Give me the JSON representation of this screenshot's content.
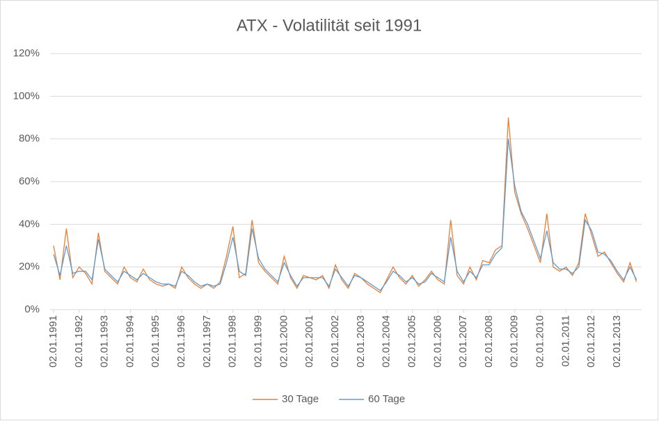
{
  "chart_data": {
    "type": "line",
    "title": "ATX - Volatilität seit 1991",
    "x": [
      1991,
      1991.25,
      1991.5,
      1991.75,
      1992,
      1992.25,
      1992.5,
      1992.75,
      1993,
      1993.25,
      1993.5,
      1993.75,
      1994,
      1994.25,
      1994.5,
      1994.75,
      1995,
      1995.25,
      1995.5,
      1995.75,
      1996,
      1996.25,
      1996.5,
      1996.75,
      1997,
      1997.25,
      1997.5,
      1997.75,
      1998,
      1998.25,
      1998.5,
      1998.75,
      1999,
      1999.25,
      1999.5,
      1999.75,
      2000,
      2000.25,
      2000.5,
      2000.75,
      2001,
      2001.25,
      2001.5,
      2001.75,
      2002,
      2002.25,
      2002.5,
      2002.75,
      2003,
      2003.25,
      2003.5,
      2003.75,
      2004,
      2004.25,
      2004.5,
      2004.75,
      2005,
      2005.25,
      2005.5,
      2005.75,
      2006,
      2006.25,
      2006.5,
      2006.75,
      2007,
      2007.25,
      2007.5,
      2007.75,
      2008,
      2008.25,
      2008.5,
      2008.75,
      2009,
      2009.25,
      2009.5,
      2009.75,
      2010,
      2010.25,
      2010.5,
      2010.75,
      2011,
      2011.25,
      2011.5,
      2011.75,
      2012,
      2012.25,
      2012.5,
      2012.75,
      2013,
      2013.25,
      2013.5,
      2013.75
    ],
    "series": [
      {
        "name": "30 Tage",
        "color": "#ed7d31",
        "values": [
          30,
          14,
          38,
          15,
          20,
          17,
          12,
          36,
          18,
          15,
          12,
          20,
          15,
          13,
          19,
          14,
          12,
          11,
          12,
          10,
          20,
          15,
          12,
          10,
          12,
          10,
          13,
          25,
          39,
          15,
          17,
          42,
          22,
          18,
          15,
          12,
          25,
          15,
          10,
          16,
          15,
          14,
          16,
          10,
          21,
          14,
          10,
          17,
          15,
          12,
          10,
          8,
          14,
          20,
          15,
          12,
          16,
          11,
          14,
          18,
          14,
          12,
          42,
          16,
          12,
          20,
          14,
          23,
          22,
          28,
          30,
          90,
          55,
          45,
          38,
          30,
          22,
          45,
          20,
          18,
          20,
          16,
          22,
          45,
          35,
          25,
          27,
          22,
          17,
          13,
          22,
          13
        ]
      },
      {
        "name": "60 Tage",
        "color": "#5b9bd5",
        "values": [
          26,
          16,
          30,
          17,
          18,
          18,
          14,
          33,
          19,
          16,
          13,
          18,
          16,
          14,
          17,
          15,
          13,
          12,
          12,
          11,
          18,
          16,
          13,
          11,
          12,
          11,
          12,
          22,
          34,
          18,
          16,
          38,
          24,
          19,
          16,
          13,
          22,
          16,
          11,
          15,
          15,
          15,
          15,
          11,
          19,
          15,
          11,
          16,
          15,
          13,
          11,
          9,
          13,
          18,
          16,
          13,
          15,
          12,
          13,
          17,
          15,
          13,
          34,
          18,
          13,
          18,
          15,
          21,
          21,
          26,
          29,
          80,
          58,
          46,
          40,
          32,
          24,
          37,
          22,
          19,
          19,
          17,
          20,
          42,
          37,
          27,
          26,
          23,
          18,
          14,
          20,
          14
        ]
      }
    ],
    "xlim": [
      1991,
      2013.95
    ],
    "xticks": [
      {
        "value": 1991,
        "label": "02.01.1991"
      },
      {
        "value": 1992,
        "label": "02.01.1992"
      },
      {
        "value": 1993,
        "label": "02.01.1993"
      },
      {
        "value": 1994,
        "label": "02.01.1994"
      },
      {
        "value": 1995,
        "label": "02.01.1995"
      },
      {
        "value": 1996,
        "label": "02.01.1996"
      },
      {
        "value": 1997,
        "label": "02.01.1997"
      },
      {
        "value": 1998,
        "label": "02.01.1998"
      },
      {
        "value": 1999,
        "label": "02.01.1999"
      },
      {
        "value": 2000,
        "label": "02.01.2000"
      },
      {
        "value": 2001,
        "label": "02.01.2001"
      },
      {
        "value": 2002,
        "label": "02.01.2002"
      },
      {
        "value": 2003,
        "label": "02.01.2003"
      },
      {
        "value": 2004,
        "label": "02.01.2004"
      },
      {
        "value": 2005,
        "label": "02.01.2005"
      },
      {
        "value": 2006,
        "label": "02.01.2006"
      },
      {
        "value": 2007,
        "label": "02.01.2007"
      },
      {
        "value": 2008,
        "label": "02.01.2008"
      },
      {
        "value": 2009,
        "label": "02.01.2009"
      },
      {
        "value": 2010,
        "label": "02.01.2010"
      },
      {
        "value": 2011,
        "label": "02.01.2011"
      },
      {
        "value": 2012,
        "label": "02.01.2012"
      },
      {
        "value": 2013,
        "label": "02.01.2013"
      }
    ],
    "ylim": [
      0,
      120
    ],
    "yticks": [
      {
        "value": 0,
        "label": "0%"
      },
      {
        "value": 20,
        "label": "20%"
      },
      {
        "value": 40,
        "label": "40%"
      },
      {
        "value": 60,
        "label": "60%"
      },
      {
        "value": 80,
        "label": "80%"
      },
      {
        "value": 100,
        "label": "100%"
      },
      {
        "value": 120,
        "label": "120%"
      }
    ],
    "grid": true,
    "legend": "bottom"
  }
}
